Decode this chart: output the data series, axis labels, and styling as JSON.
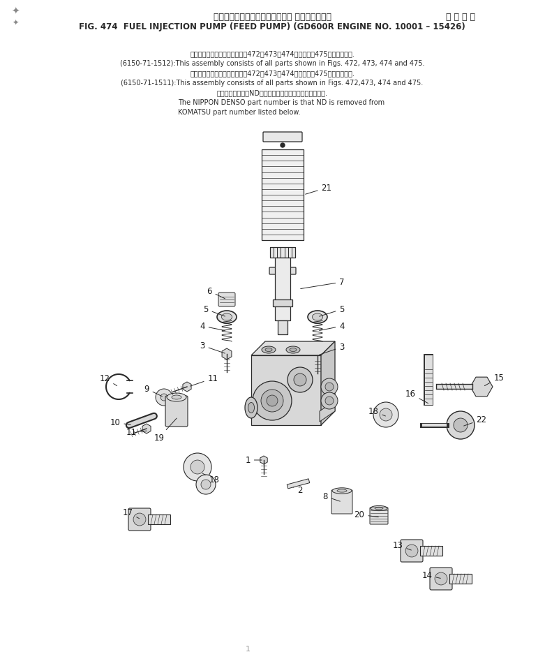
{
  "title_jp": "フェエルインジェクションボンプ フィードボンプ",
  "title_jp2": "通 用 号 機",
  "title_en": "FIG. 474  FUEL INJECTION PUMP (FEED PUMP) (GD600R ENGINE NO. 10001 – 15426)",
  "note1_jp": "このアセンブリの構成部品は围472、473、474図および围475図を含みます.",
  "note1_en": "(6150-71-1512):This assembly consists of all parts shown in Figs. 472, 473, 474 and 475.",
  "note2_jp": "このアセンブリの構成部品は围472、473、474図および围475図を含みます.",
  "note2_en": "(6150-71-1511):This assembly consists of all parts shown in Figs. 472,473, 474 and 475.",
  "note3_jp": "品番のメーカ記号NDを除いたものが日本電装の品番です.",
  "note3_en": "The NIPPON DENSO part number is that ND is removed from",
  "note4_en": "KOMATSU part number listed below.",
  "bg_color": "#ffffff",
  "text_color": "#1a1a1a",
  "line_color": "#2a2a2a"
}
